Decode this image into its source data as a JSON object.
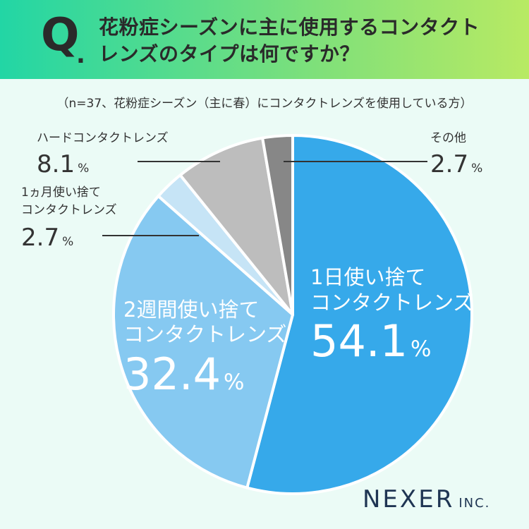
{
  "header": {
    "q_letter": "Q",
    "q_dot": ".",
    "question": "花粉症シーズンに主に使用するコンタクトレンズのタイプは何ですか？"
  },
  "note": "（n=37、花粉症シーズン（主に春）にコンタクトレンズを使用している方）",
  "brand": {
    "name": "NEXER",
    "suffix": "INC."
  },
  "colors": {
    "daily": "#36a9ea",
    "two_week": "#86c9f1",
    "monthly": "#c6e4f6",
    "hard": "#bdbdbd",
    "other": "#878787",
    "header_start": "#22d6a5",
    "header_end": "#b8ea63",
    "background": "#ebfbf6"
  },
  "chart_data": {
    "type": "pie",
    "unit": "%",
    "start": "12 o'clock",
    "direction": "clockwise",
    "slices": [
      {
        "key": "daily",
        "label_lines": [
          "1日使い捨て",
          "コンタクトレンズ"
        ],
        "value": 54.1,
        "label_inside": true
      },
      {
        "key": "two_week",
        "label_lines": [
          "2週間使い捨て",
          "コンタクトレンズ"
        ],
        "value": 32.4,
        "label_inside": true
      },
      {
        "key": "monthly",
        "label_lines": [
          "1ヵ月使い捨て",
          "コンタクトレンズ"
        ],
        "value": 2.7,
        "label_inside": false
      },
      {
        "key": "hard",
        "label_lines": [
          "ハードコンタクトレンズ"
        ],
        "value": 8.1,
        "label_inside": false
      },
      {
        "key": "other",
        "label_lines": [
          "その他"
        ],
        "value": 2.7,
        "label_inside": false
      }
    ]
  }
}
